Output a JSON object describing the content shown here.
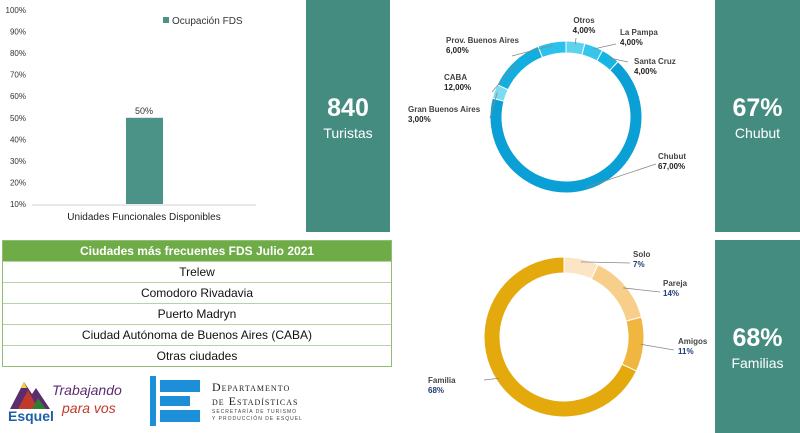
{
  "chart_data": [
    {
      "type": "bar",
      "categories": [
        "Unidades Funcionales Disponibles"
      ],
      "series": [
        {
          "name": "Ocupación FDS",
          "values": [
            50
          ]
        }
      ],
      "data_labels": [
        "50%"
      ],
      "yticks": [
        "10%",
        "20%",
        "30%",
        "40%",
        "50%",
        "60%",
        "70%",
        "80%",
        "90%",
        "100%"
      ],
      "ylim": [
        10,
        100
      ],
      "legend": "top-right",
      "colors": [
        "#4a9386"
      ]
    },
    {
      "type": "pie",
      "style": "donut",
      "slices": [
        {
          "name": "Otros",
          "label": "4,00%",
          "value": 4,
          "color": "#5ed3f0"
        },
        {
          "name": "La Pampa",
          "label": "4,00%",
          "value": 4,
          "color": "#34c6ec"
        },
        {
          "name": "Santa Cruz",
          "label": "4,00%",
          "value": 4,
          "color": "#15b5e4"
        },
        {
          "name": "Chubut",
          "label": "67,00%",
          "value": 67,
          "color": "#0aa0d6"
        },
        {
          "name": "Gran Buenos Aires",
          "label": "3,00%",
          "value": 3,
          "color": "#7adcf2"
        },
        {
          "name": "CABA",
          "label": "12,00%",
          "value": 12,
          "color": "#12aee0"
        },
        {
          "name": "Prov. Buenos Aires",
          "label": "6,00%",
          "value": 6,
          "color": "#2cc1ea"
        }
      ]
    },
    {
      "type": "pie",
      "style": "donut",
      "slices": [
        {
          "name": "Solo",
          "label": "7%",
          "value": 7,
          "color": "#fbe5c4"
        },
        {
          "name": "Pareja",
          "label": "14%",
          "value": 14,
          "color": "#f8cf8a"
        },
        {
          "name": "Amigos",
          "label": "11%",
          "value": 11,
          "color": "#f1b640"
        },
        {
          "name": "Familia",
          "label": "68%",
          "value": 68,
          "color": "#e3a90d"
        }
      ]
    }
  ],
  "panels": {
    "turistas": {
      "value": "840",
      "label": "Turistas"
    },
    "chubut": {
      "value": "67%",
      "label": "Chubut"
    },
    "familias": {
      "value": "68%",
      "label": "Familias"
    }
  },
  "table": {
    "title": "Ciudades más frecuentes FDS Julio 2021",
    "rows": [
      "Trelew",
      "Comodoro Rivadavia",
      "Puerto Madryn",
      "Ciudad Autónoma de Buenos Aires (CABA)",
      "Otras ciudades"
    ]
  },
  "logos": {
    "esquel": {
      "name": "Esquel",
      "slogan_line1": "Trabajando",
      "slogan_line2": "para vos"
    },
    "departamento": {
      "line1": "Departamento",
      "line2": "de Estadísticas",
      "line3": "SECRETARÍA DE TURISMO",
      "line4": "Y PRODUCCIÓN DE ESQUEL"
    }
  },
  "colors": {
    "panel": "#458c80",
    "table_header": "#6fac47",
    "bar": "#4a9386",
    "dept_blue": "#1d8ed8"
  }
}
